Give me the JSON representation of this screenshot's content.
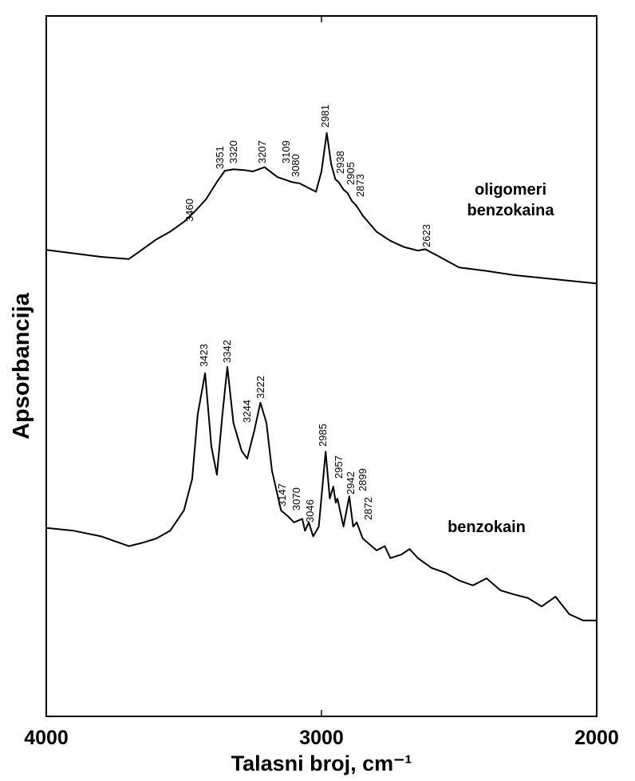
{
  "chart_data": {
    "type": "line",
    "xlabel": "Talasni broj, cm⁻¹",
    "ylabel": "Apsorbancija",
    "xlim": [
      4000,
      2000
    ],
    "ylim": [
      0,
      100
    ],
    "xticks": [
      4000,
      3000,
      2000
    ],
    "series": [
      {
        "name": "oligomeri benzokaina",
        "color": "#000000",
        "x": [
          4000,
          3800,
          3700,
          3650,
          3600,
          3550,
          3500,
          3460,
          3420,
          3380,
          3351,
          3320,
          3280,
          3250,
          3207,
          3160,
          3109,
          3080,
          3050,
          3020,
          3000,
          2981,
          2965,
          2950,
          2938,
          2920,
          2905,
          2890,
          2873,
          2850,
          2800,
          2750,
          2700,
          2650,
          2623,
          2580,
          2500,
          2400,
          2300,
          2200,
          2100,
          2000
        ],
        "values": [
          66.6,
          65.6,
          65.3,
          66.7,
          68.1,
          69.2,
          70.6,
          72.1,
          73.8,
          76.3,
          77.9,
          78.1,
          78.0,
          77.8,
          78.4,
          77.0,
          76.3,
          76.1,
          75.5,
          74.9,
          77.8,
          83.3,
          78.9,
          76.7,
          76.3,
          75.2,
          74.7,
          73.6,
          72.9,
          71.5,
          69.2,
          67.9,
          67.0,
          66.5,
          66.7,
          65.8,
          64.1,
          63.6,
          63.0,
          62.6,
          62.2,
          61.8
        ],
        "peaks": [
          3460,
          3351,
          3320,
          3207,
          3109,
          3080,
          2981,
          2938,
          2905,
          2873,
          2623
        ]
      },
      {
        "name": "benzokain",
        "color": "#000000",
        "x": [
          4000,
          3900,
          3800,
          3700,
          3650,
          3600,
          3550,
          3500,
          3470,
          3450,
          3423,
          3400,
          3380,
          3360,
          3342,
          3320,
          3290,
          3270,
          3244,
          3222,
          3200,
          3180,
          3147,
          3120,
          3100,
          3070,
          3060,
          3046,
          3030,
          3010,
          2985,
          2970,
          2957,
          2948,
          2942,
          2920,
          2899,
          2885,
          2872,
          2850,
          2800,
          2770,
          2750,
          2710,
          2680,
          2650,
          2600,
          2550,
          2500,
          2450,
          2400,
          2350,
          2300,
          2250,
          2200,
          2150,
          2100,
          2050,
          2000
        ],
        "values": [
          26.9,
          26.5,
          25.7,
          24.3,
          24.8,
          25.4,
          26.5,
          29.4,
          33.9,
          43.1,
          49.0,
          38.5,
          34.5,
          43.1,
          49.9,
          41.9,
          37.9,
          36.8,
          40.8,
          44.8,
          41.9,
          35.1,
          29.4,
          28.5,
          27.7,
          28.2,
          26.5,
          27.7,
          25.7,
          27.1,
          37.8,
          31.1,
          32.8,
          30.5,
          31.1,
          27.1,
          31.4,
          27.1,
          27.7,
          25.4,
          23.7,
          24.3,
          22.6,
          23.1,
          23.9,
          22.6,
          21.2,
          20.5,
          19.4,
          18.7,
          19.7,
          18.0,
          17.4,
          16.9,
          15.7,
          17.1,
          14.6,
          13.7,
          13.7
        ],
        "peaks": [
          3423,
          3342,
          3244,
          3222,
          3147,
          3070,
          3046,
          2985,
          2957,
          2942,
          2899,
          2872
        ]
      }
    ]
  }
}
